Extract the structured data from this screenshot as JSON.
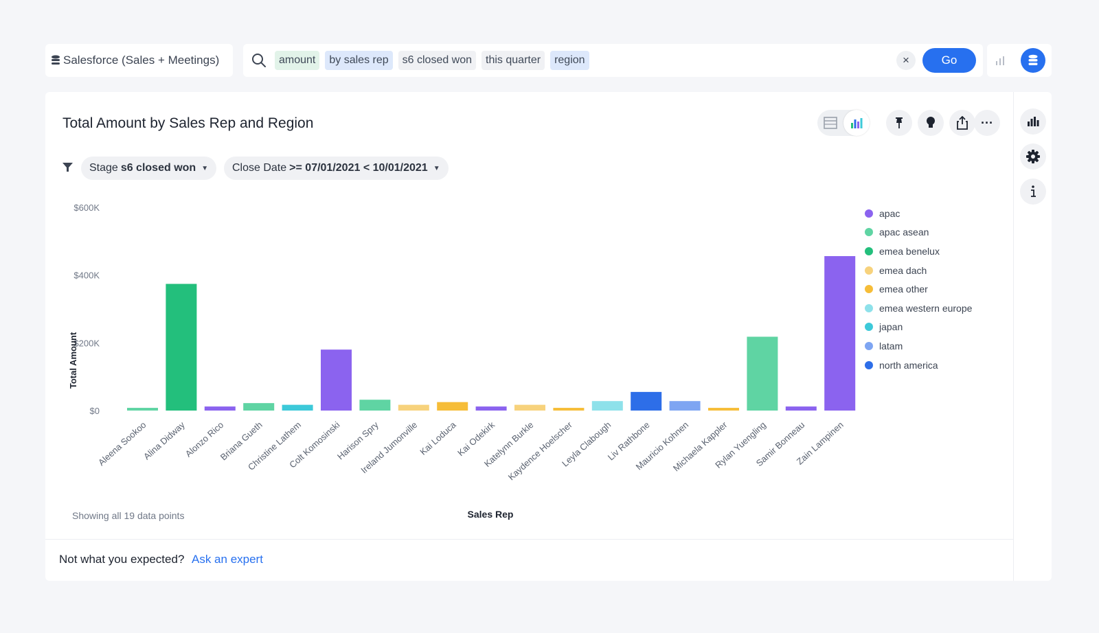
{
  "search": {
    "datasource": "Salesforce (Sales + Meetings)",
    "tokens": [
      {
        "label": "amount",
        "kind": "green"
      },
      {
        "label": "by sales rep",
        "kind": "blue"
      },
      {
        "label": "s6 closed won",
        "kind": "gray"
      },
      {
        "label": "this quarter",
        "kind": "gray"
      },
      {
        "label": "region",
        "kind": "blue"
      }
    ],
    "clear_label": "×",
    "go_label": "Go"
  },
  "answer": {
    "title": "Total Amount by Sales Rep and Region",
    "filters": [
      {
        "prefix": "Stage",
        "value": "s6 closed won"
      },
      {
        "prefix": "Close Date",
        "value": ">= 07/01/2021 < 10/01/2021"
      }
    ],
    "footnote": "Showing all 19 data points",
    "more_label": "···"
  },
  "footer": {
    "text": "Not what you expected?",
    "link": "Ask an expert"
  },
  "chart_data": {
    "type": "bar",
    "xlabel": "Sales Rep",
    "ylabel": "Total Amount",
    "ylim": [
      0,
      600000
    ],
    "yticks": [
      {
        "value": 0,
        "label": "$0"
      },
      {
        "value": 200000,
        "label": "$200K"
      },
      {
        "value": 400000,
        "label": "$400K"
      },
      {
        "value": 600000,
        "label": "$600K"
      }
    ],
    "legend_position": "right",
    "regions": [
      {
        "name": "apac",
        "color": "#8b63ef"
      },
      {
        "name": "apac asean",
        "color": "#5fd4a3"
      },
      {
        "name": "emea benelux",
        "color": "#23bf7c"
      },
      {
        "name": "emea dach",
        "color": "#f7d27c"
      },
      {
        "name": "emea other",
        "color": "#f6bd38"
      },
      {
        "name": "emea western europe",
        "color": "#8ee1ea"
      },
      {
        "name": "japan",
        "color": "#3dc9d9"
      },
      {
        "name": "latam",
        "color": "#7ea5f2"
      },
      {
        "name": "north america",
        "color": "#2d6ee8"
      }
    ],
    "categories": [
      "Aleena Sookoo",
      "Alina Didway",
      "Alonzo Rico",
      "Briana Gueth",
      "Christine Lathem",
      "Colt Komosinski",
      "Harison Spry",
      "Ireland Jumonville",
      "Kai Loduca",
      "Kai Odekirk",
      "Katelynn Burkle",
      "Kaydence Hoelscher",
      "Leyla Clabough",
      "Liv Rathbone",
      "Mauricio Kohnen",
      "Michaela Kappler",
      "Rylan Yuengling",
      "Samir Bonneau",
      "Zain Lampinen"
    ],
    "points": [
      {
        "rep": "Aleena Sookoo",
        "region": "apac asean",
        "value": 8000
      },
      {
        "rep": "Alina Didway",
        "region": "emea benelux",
        "value": 374000
      },
      {
        "rep": "Alonzo Rico",
        "region": "apac",
        "value": 12000
      },
      {
        "rep": "Briana Gueth",
        "region": "apac asean",
        "value": 22000
      },
      {
        "rep": "Christine Lathem",
        "region": "japan",
        "value": 17000
      },
      {
        "rep": "Colt Komosinski",
        "region": "apac",
        "value": 180000
      },
      {
        "rep": "Harison Spry",
        "region": "apac asean",
        "value": 32000
      },
      {
        "rep": "Ireland Jumonville",
        "region": "emea dach",
        "value": 17000
      },
      {
        "rep": "Kai Loduca",
        "region": "emea other",
        "value": 25000
      },
      {
        "rep": "Kai Odekirk",
        "region": "apac",
        "value": 12000
      },
      {
        "rep": "Katelynn Burkle",
        "region": "emea dach",
        "value": 17000
      },
      {
        "rep": "Kaydence Hoelscher",
        "region": "emea other",
        "value": 8000
      },
      {
        "rep": "Leyla Clabough",
        "region": "emea western europe",
        "value": 28000
      },
      {
        "rep": "Liv Rathbone",
        "region": "north america",
        "value": 55000
      },
      {
        "rep": "Mauricio Kohnen",
        "region": "latam",
        "value": 28000
      },
      {
        "rep": "Michaela Kappler",
        "region": "emea other",
        "value": 8000
      },
      {
        "rep": "Rylan Yuengling",
        "region": "apac asean",
        "value": 218000
      },
      {
        "rep": "Samir Bonneau",
        "region": "apac",
        "value": 12000
      },
      {
        "rep": "Zain Lampinen",
        "region": "apac",
        "value": 456000
      }
    ]
  }
}
